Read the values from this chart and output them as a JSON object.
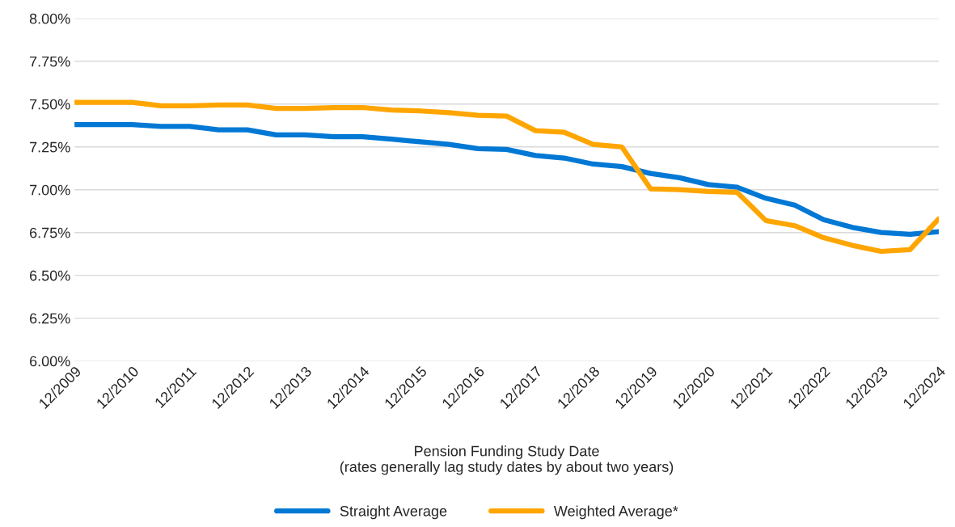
{
  "chart_data": {
    "type": "line",
    "xlabel": "Pension Funding Study Date\n(rates generally lag study dates by about two years)",
    "categories": [
      "12/2009",
      null,
      "12/2010",
      null,
      "12/2011",
      null,
      "12/2012",
      null,
      "12/2013",
      null,
      "12/2014",
      null,
      "12/2015",
      null,
      "12/2016",
      null,
      "12/2017",
      null,
      "12/2018",
      null,
      "12/2019",
      null,
      "12/2020",
      null,
      "12/2021",
      null,
      "12/2022",
      null,
      "12/2023",
      null,
      "12/2024"
    ],
    "series": [
      {
        "name": "Straight Average",
        "color": "#0078d4",
        "values": [
          7.38,
          7.38,
          7.38,
          7.37,
          7.37,
          7.35,
          7.35,
          7.32,
          7.32,
          7.31,
          7.31,
          7.295,
          7.28,
          7.265,
          7.24,
          7.235,
          7.2,
          7.185,
          7.15,
          7.135,
          7.095,
          7.07,
          7.03,
          7.015,
          6.95,
          6.91,
          6.825,
          6.78,
          6.75,
          6.74,
          6.755
        ]
      },
      {
        "name": "Weighted Average*",
        "color": "#ffa500",
        "values": [
          7.51,
          7.51,
          7.51,
          7.49,
          7.49,
          7.495,
          7.495,
          7.475,
          7.475,
          7.48,
          7.48,
          7.465,
          7.46,
          7.45,
          7.435,
          7.43,
          7.345,
          7.335,
          7.265,
          7.25,
          7.005,
          7.0,
          6.99,
          6.985,
          6.82,
          6.79,
          6.72,
          6.675,
          6.64,
          6.65,
          6.83
        ]
      }
    ],
    "ylim": [
      6.0,
      8.0
    ],
    "yticks": [
      {
        "value": 6.0,
        "label": "6.00%"
      },
      {
        "value": 6.25,
        "label": "6.25%"
      },
      {
        "value": 6.5,
        "label": "6.50%"
      },
      {
        "value": 6.75,
        "label": "6.75%"
      },
      {
        "value": 7.0,
        "label": "7.00%"
      },
      {
        "value": 7.25,
        "label": "7.25%"
      },
      {
        "value": 7.5,
        "label": "7.50%"
      },
      {
        "value": 7.75,
        "label": "7.75%"
      },
      {
        "value": 8.0,
        "label": "8.00%"
      }
    ],
    "grid": "y",
    "legend": "bottom",
    "marker": "none",
    "line_style": "solid"
  }
}
